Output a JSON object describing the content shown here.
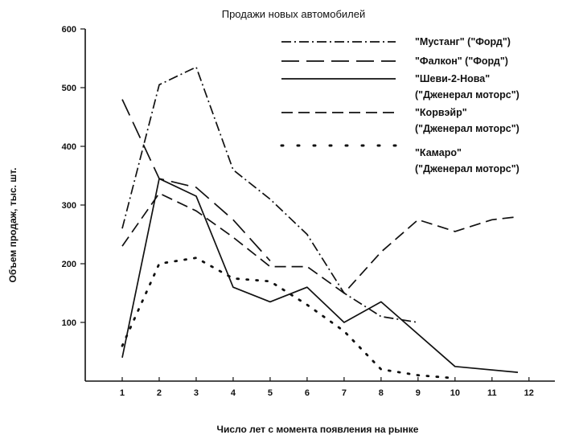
{
  "chart_data": {
    "type": "line",
    "title": "Продажи новых автомобилей",
    "xlabel": "Число лет с момента появления на рынке",
    "ylabel": "Объем продаж, тыс. шт.",
    "x_ticks": [
      "1",
      "2",
      "3",
      "4",
      "5",
      "6",
      "7",
      "8",
      "9",
      "10",
      "11",
      "12"
    ],
    "y_ticks": [
      "100",
      "200",
      "300",
      "400",
      "500",
      "600"
    ],
    "xlim": [
      0,
      12.7
    ],
    "ylim": [
      0,
      600
    ],
    "grid": false,
    "legend_position": "top-right",
    "series": [
      {
        "name": "\"Мустанг\" (\"Форд\")",
        "style": "dashdot",
        "x": [
          1,
          2,
          3,
          4,
          5,
          6,
          7,
          8,
          9
        ],
        "y": [
          260,
          505,
          535,
          360,
          310,
          250,
          150,
          110,
          100
        ]
      },
      {
        "name": "\"Фалкон\" (\"Форд\")",
        "style": "longdash",
        "x": [
          1,
          2,
          3,
          4,
          5
        ],
        "y": [
          480,
          345,
          330,
          275,
          205
        ]
      },
      {
        "name": "\"Шеви-2-Нова\" (\"Дженерал моторс\")",
        "style": "solid",
        "x": [
          1,
          2,
          3,
          4,
          5,
          6,
          7,
          8,
          10,
          11.7
        ],
        "y": [
          40,
          345,
          315,
          160,
          135,
          160,
          100,
          135,
          25,
          15
        ]
      },
      {
        "name": "\"Корвэйр\" (\"Дженерал моторс\")",
        "style": "dashed",
        "x": [
          1,
          2,
          3,
          4,
          5,
          6,
          7,
          8,
          9,
          10,
          11,
          11.7
        ],
        "y": [
          230,
          320,
          290,
          245,
          195,
          195,
          150,
          220,
          275,
          255,
          275,
          280
        ]
      },
      {
        "name": "\"Камаро\" (\"Дженерал моторс\")",
        "style": "dotted",
        "x": [
          1,
          2,
          3,
          4,
          5,
          6,
          7,
          8,
          9,
          10
        ],
        "y": [
          60,
          200,
          210,
          175,
          170,
          130,
          85,
          20,
          10,
          5
        ]
      }
    ]
  }
}
